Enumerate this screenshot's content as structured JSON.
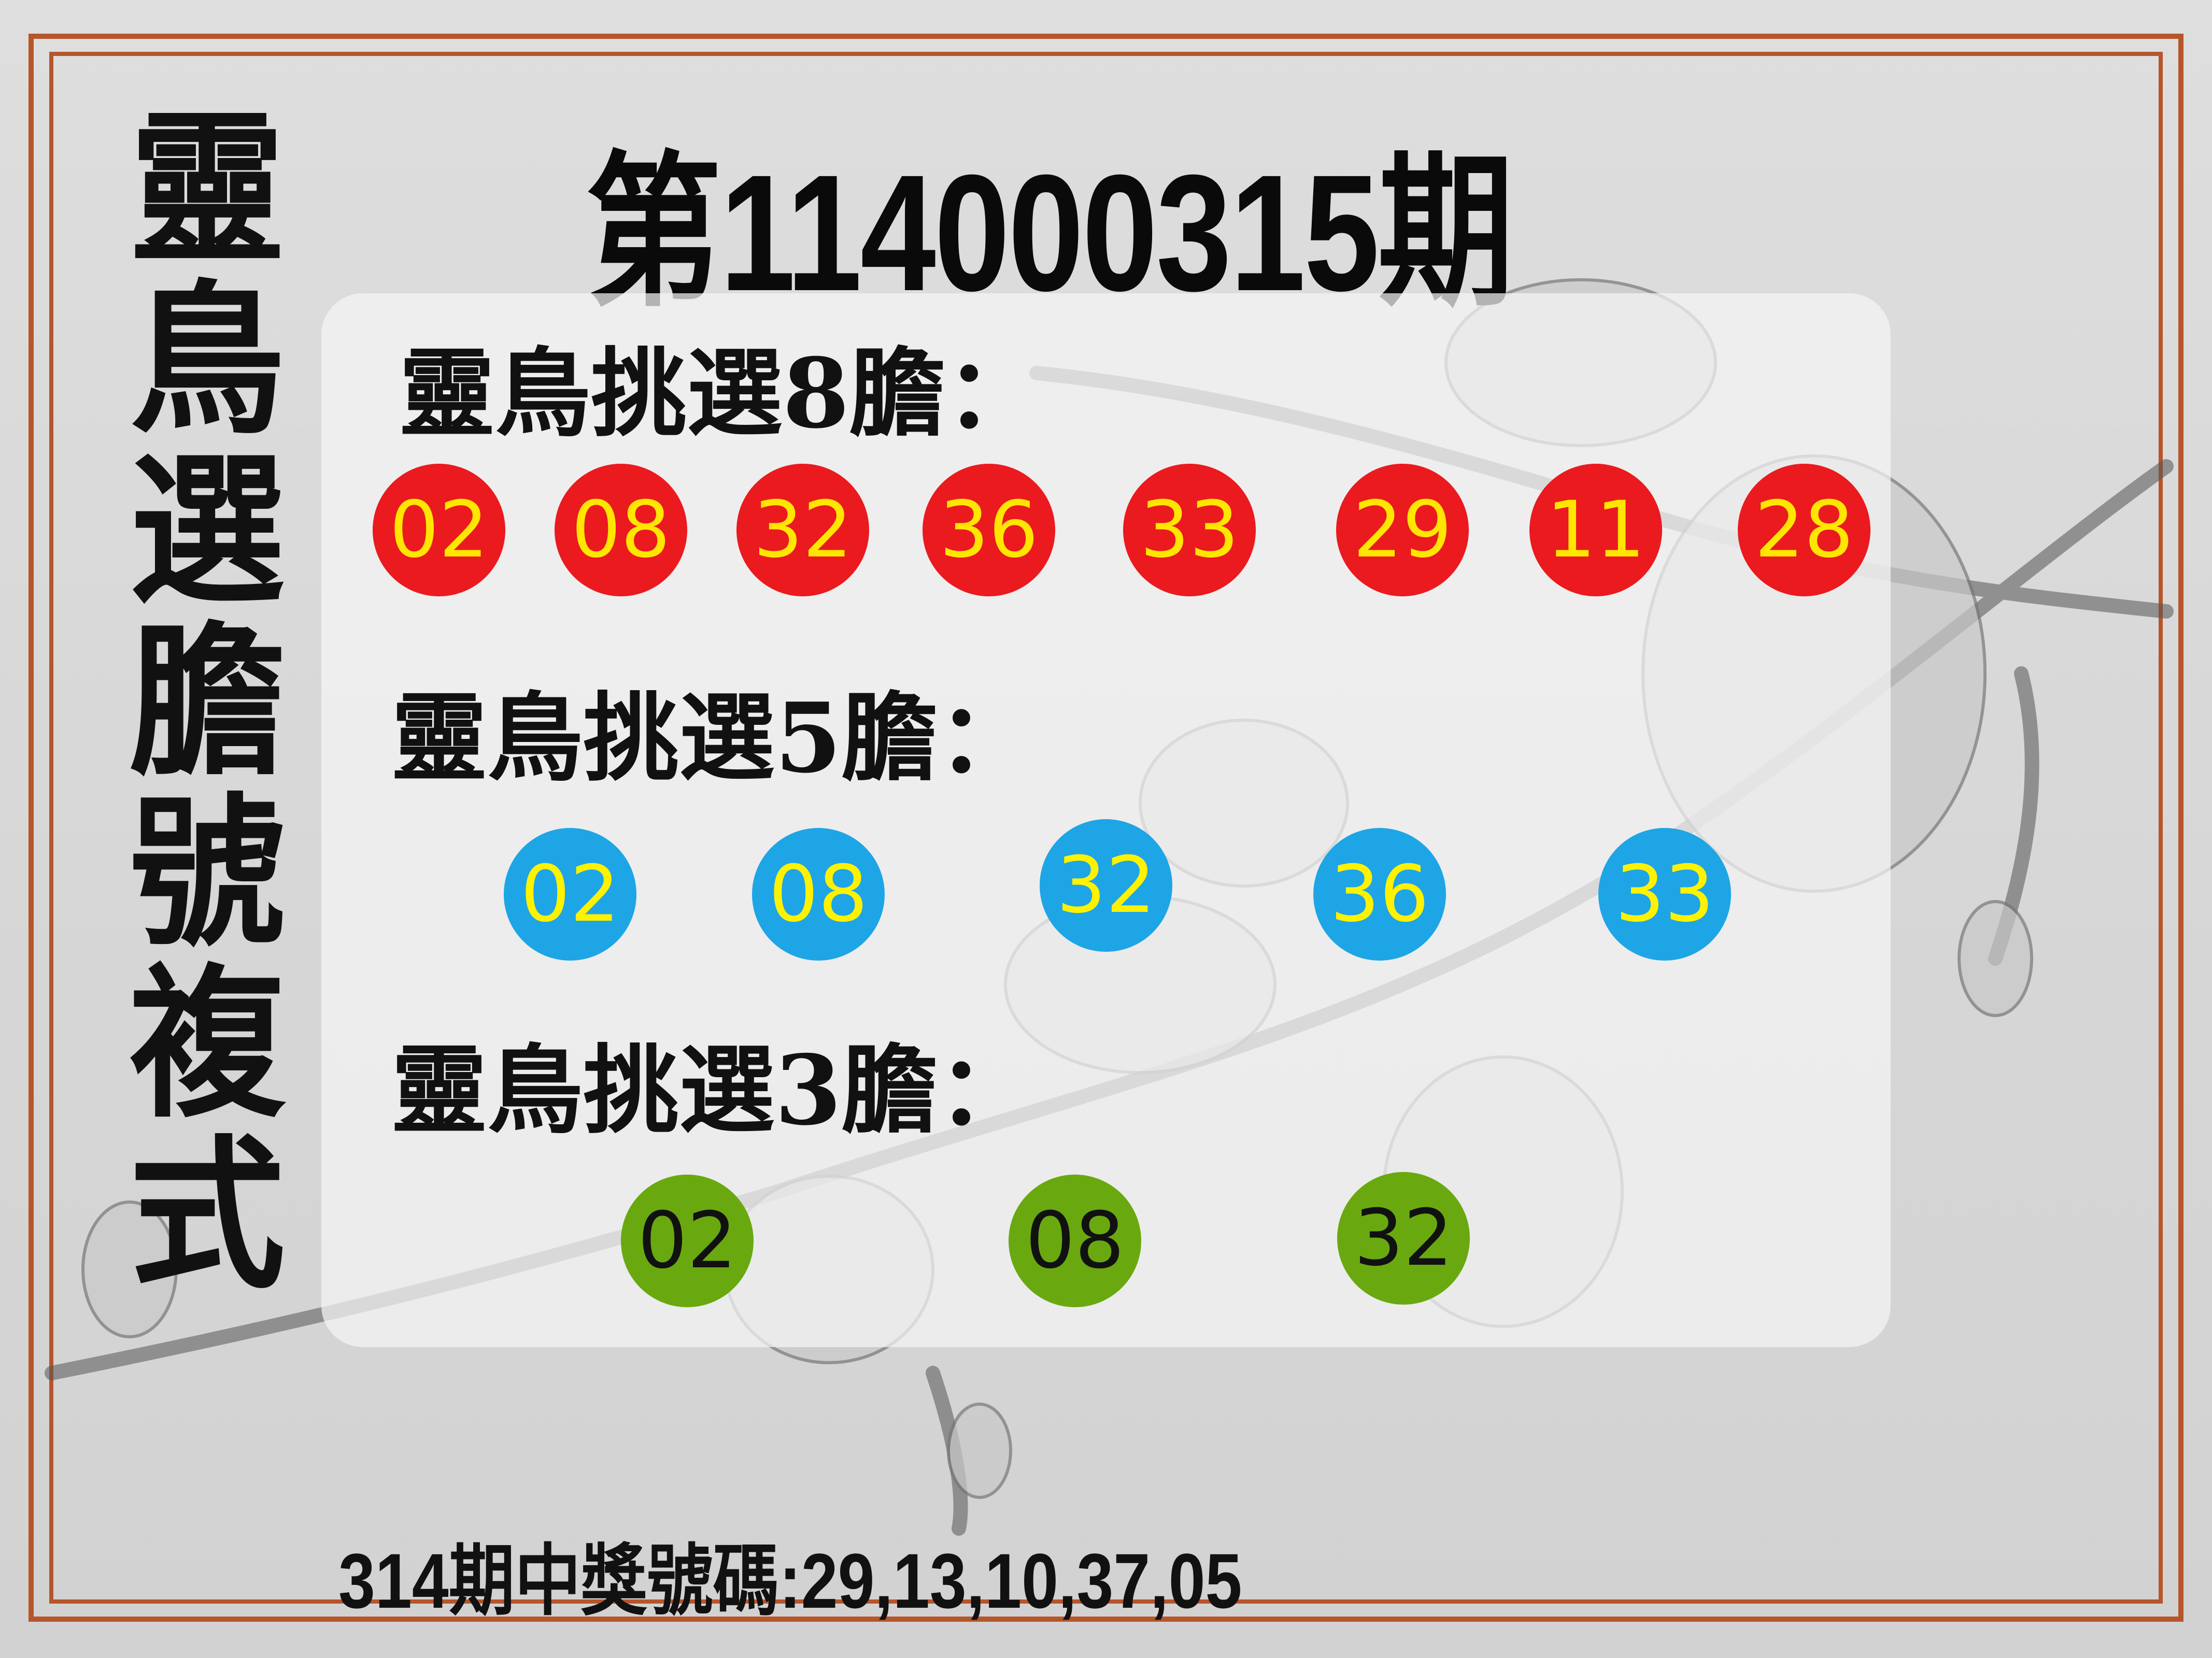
{
  "vertical_title": [
    "靈",
    "鳥",
    "選",
    "膽",
    "號",
    "複",
    "式"
  ],
  "issue_title": "第114000315期",
  "sections": [
    {
      "heading": "靈鳥挑選8膽：",
      "color": "#ea1a1f",
      "numbers": [
        "02",
        "08",
        "32",
        "36",
        "33",
        "29",
        "11",
        "28"
      ]
    },
    {
      "heading": "靈鳥挑選5膽：",
      "color": "#1ea5e6",
      "numbers": [
        "02",
        "08",
        "32",
        "36",
        "33"
      ]
    },
    {
      "heading": "靈鳥挑選3膽：",
      "color": "#69a90f",
      "numbers": [
        "02",
        "08",
        "32"
      ]
    }
  ],
  "footer": "314期中獎號碼:29,13,10,37,05",
  "colors": {
    "frame": "#b5562b",
    "ball_text_yellow": "#ffe600"
  }
}
